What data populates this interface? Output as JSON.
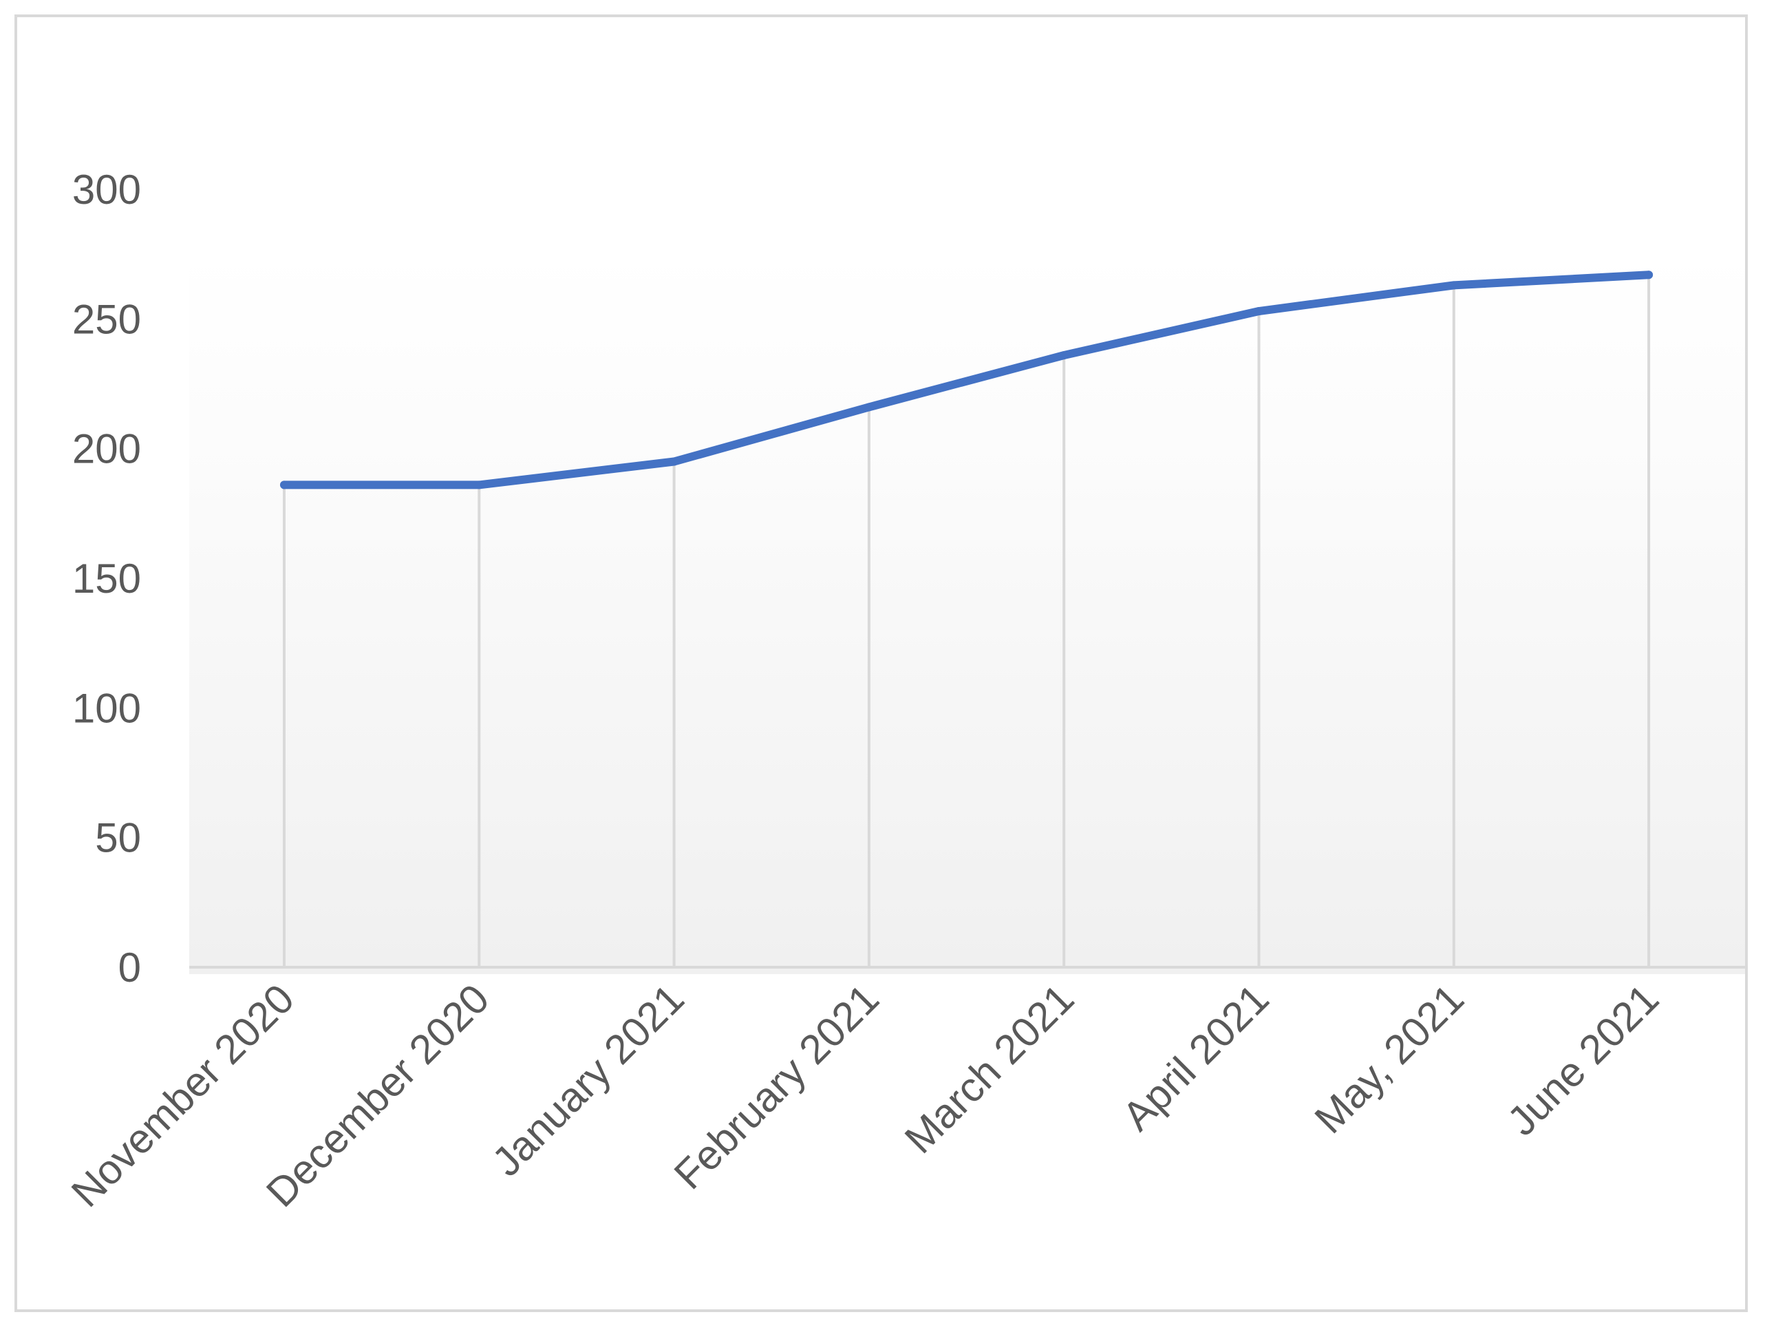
{
  "chart_data": {
    "type": "line",
    "title": "",
    "xlabel": "",
    "ylabel": "",
    "categories": [
      "November 2020",
      "December 2020",
      "January 2021",
      "February 2021",
      "March 2021",
      "April 2021",
      "May, 2021",
      "June 2021"
    ],
    "series": [
      {
        "values": [
          186,
          186,
          195,
          216,
          236,
          253,
          263,
          267
        ],
        "color": "#4472c4"
      }
    ],
    "ylim": [
      0,
      300
    ],
    "yticks": [
      0,
      50,
      100,
      150,
      200,
      250,
      300
    ],
    "grid": "vertical drop lines",
    "legend": "none",
    "background": "gradient white to light gray"
  }
}
